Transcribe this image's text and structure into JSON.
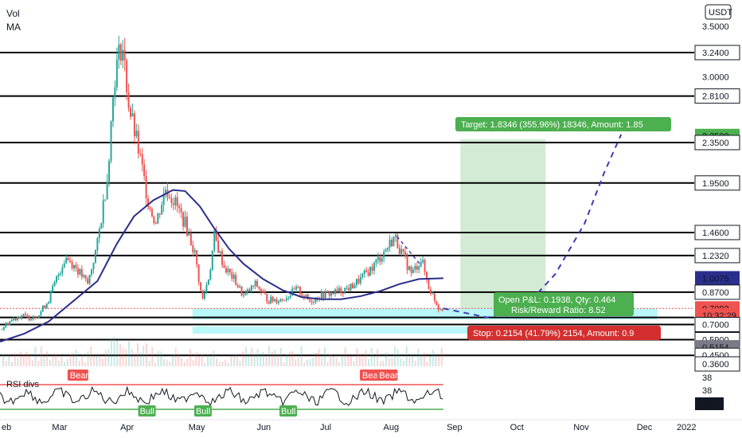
{
  "header": {
    "vol_label": "Vol",
    "ma_label": "MA",
    "currency_button": "USDT"
  },
  "colors": {
    "up": "#26a69a",
    "down": "#ef5350",
    "ma": "#2a2e8c",
    "target_zone": "#c8e6c9",
    "support_zone": "#80f0f4",
    "target_tag": "#4caf50",
    "stop_tag": "#d32f2f",
    "rsi_upper": "#ef5350",
    "rsi_lower": "#4caf50"
  },
  "chart_data": {
    "type": "line",
    "title": "",
    "price_axis": {
      "min": 0.36,
      "max": 3.5,
      "ticks": [
        "3.5000",
        "3.0000"
      ],
      "badges": [
        {
          "label": "3.2400",
          "value": 3.24,
          "bg": "#ffffff",
          "fg": "#131722"
        },
        {
          "label": "2.8100",
          "value": 2.81,
          "bg": "#ffffff",
          "fg": "#131722"
        },
        {
          "label": "2.3500",
          "value": 2.415,
          "bg": "#4caf50",
          "fg": "#ffffff"
        },
        {
          "label": "2.3500",
          "value": 2.35,
          "bg": "#ffffff",
          "fg": "#131722"
        },
        {
          "label": "1.9500",
          "value": 1.95,
          "bg": "#ffffff",
          "fg": "#131722"
        },
        {
          "label": "1.4600",
          "value": 1.46,
          "bg": "#ffffff",
          "fg": "#131722"
        },
        {
          "label": "1.2320",
          "value": 1.232,
          "bg": "#ffffff",
          "fg": "#131722"
        },
        {
          "label": "1.0075",
          "value": 1.0075,
          "bg": "#2a2e8c",
          "fg": "#ffffff"
        },
        {
          "label": "0.8700",
          "value": 0.87,
          "bg": "#ffffff",
          "fg": "#131722"
        },
        {
          "label": "0.7092",
          "value": 0.7092,
          "bg": "#ef5350",
          "fg": "#ffffff"
        },
        {
          "label": "10:32:29",
          "value": 0.6392,
          "bg": "#ef5350",
          "fg": "#ffffff"
        },
        {
          "label": "0.7000",
          "value": 0.55,
          "bg": "#ffffff",
          "fg": "#131722"
        },
        {
          "label": "0.5900",
          "value": 0.4,
          "bg": "#ffffff",
          "fg": "#131722"
        },
        {
          "label": "0.5154",
          "value": 0.325,
          "bg": "#787b86",
          "fg": "#ffffff"
        },
        {
          "label": "0.4500",
          "value": 0.245,
          "bg": "#ffffff",
          "fg": "#131722"
        },
        {
          "label": "0.3600",
          "value": 0.16,
          "bg": "#ffffff",
          "fg": "#131722"
        }
      ]
    },
    "horizontal_levels": [
      3.24,
      2.81,
      2.35,
      1.95,
      1.46,
      1.232,
      0.87,
      0.7,
      0.59,
      0.45,
      0.36
    ],
    "x_axis_labels": [
      "eb",
      "Mar",
      "Apr",
      "May",
      "Jun",
      "Jul",
      "Aug",
      "Sep",
      "Oct",
      "Nov",
      "Dec",
      "2022"
    ],
    "price_series": [
      {
        "t": 0,
        "p": 0.5
      },
      {
        "t": 4,
        "p": 0.58
      },
      {
        "t": 8,
        "p": 0.64
      },
      {
        "t": 12,
        "p": 0.62
      },
      {
        "t": 16,
        "p": 0.65
      },
      {
        "t": 20,
        "p": 0.8
      },
      {
        "t": 24,
        "p": 1.05
      },
      {
        "t": 27,
        "p": 1.22
      },
      {
        "t": 31,
        "p": 1.12
      },
      {
        "t": 36,
        "p": 0.95
      },
      {
        "t": 40,
        "p": 1.35
      },
      {
        "t": 44,
        "p": 2.0
      },
      {
        "t": 47,
        "p": 3.0
      },
      {
        "t": 50,
        "p": 3.35
      },
      {
        "t": 53,
        "p": 2.7
      },
      {
        "t": 57,
        "p": 2.25
      },
      {
        "t": 61,
        "p": 1.75
      },
      {
        "t": 64,
        "p": 1.55
      },
      {
        "t": 68,
        "p": 1.9
      },
      {
        "t": 72,
        "p": 1.75
      },
      {
        "t": 76,
        "p": 1.55
      },
      {
        "t": 80,
        "p": 1.25
      },
      {
        "t": 83,
        "p": 0.78
      },
      {
        "t": 86,
        "p": 1.05
      },
      {
        "t": 88,
        "p": 1.42
      },
      {
        "t": 92,
        "p": 1.12
      },
      {
        "t": 96,
        "p": 1.0
      },
      {
        "t": 100,
        "p": 0.83
      },
      {
        "t": 105,
        "p": 0.95
      },
      {
        "t": 110,
        "p": 0.79
      },
      {
        "t": 116,
        "p": 0.8
      },
      {
        "t": 122,
        "p": 0.9
      },
      {
        "t": 127,
        "p": 0.78
      },
      {
        "t": 132,
        "p": 0.84
      },
      {
        "t": 138,
        "p": 0.87
      },
      {
        "t": 144,
        "p": 0.92
      },
      {
        "t": 148,
        "p": 1.0
      },
      {
        "t": 153,
        "p": 1.12
      },
      {
        "t": 158,
        "p": 1.28
      },
      {
        "t": 162,
        "p": 1.42
      },
      {
        "t": 165,
        "p": 1.25
      },
      {
        "t": 169,
        "p": 1.05
      },
      {
        "t": 173,
        "p": 1.2
      },
      {
        "t": 176,
        "p": 0.92
      },
      {
        "t": 180,
        "p": 0.72
      },
      {
        "t": 182,
        "p": 0.7092
      }
    ],
    "ma_series": [
      {
        "t": 0,
        "p": 0.38
      },
      {
        "t": 10,
        "p": 0.46
      },
      {
        "t": 20,
        "p": 0.58
      },
      {
        "t": 30,
        "p": 0.78
      },
      {
        "t": 40,
        "p": 0.98
      },
      {
        "t": 48,
        "p": 1.35
      },
      {
        "t": 55,
        "p": 1.62
      },
      {
        "t": 63,
        "p": 1.78
      },
      {
        "t": 71,
        "p": 1.88
      },
      {
        "t": 76,
        "p": 1.87
      },
      {
        "t": 82,
        "p": 1.72
      },
      {
        "t": 88,
        "p": 1.5
      },
      {
        "t": 94,
        "p": 1.3
      },
      {
        "t": 100,
        "p": 1.15
      },
      {
        "t": 108,
        "p": 1.0
      },
      {
        "t": 116,
        "p": 0.89
      },
      {
        "t": 124,
        "p": 0.82
      },
      {
        "t": 132,
        "p": 0.8
      },
      {
        "t": 140,
        "p": 0.8
      },
      {
        "t": 148,
        "p": 0.83
      },
      {
        "t": 156,
        "p": 0.88
      },
      {
        "t": 164,
        "p": 0.95
      },
      {
        "t": 172,
        "p": 1.0
      },
      {
        "t": 182,
        "p": 1.0075
      }
    ],
    "projection": [
      {
        "t": 182,
        "p": 0.7092
      },
      {
        "t": 200,
        "p": 0.62
      },
      {
        "t": 215,
        "p": 0.71
      },
      {
        "t": 228,
        "p": 1.05
      },
      {
        "t": 240,
        "p": 1.55
      },
      {
        "t": 248,
        "p": 2.05
      },
      {
        "t": 255,
        "p": 2.43
      }
    ],
    "target_zone": {
      "t_start": 189,
      "t_end": 224,
      "p_low": 0.7092,
      "p_high": 2.415
    },
    "support_zone": {
      "t_start": 79,
      "t_end": 270,
      "p_low": 0.5154,
      "p_high": 0.7092
    },
    "rsi": {
      "upper_band": 70,
      "lower_band": 30,
      "labels": {
        "title": "RSI divs",
        "bear": "Bear",
        "bull": "Bull"
      },
      "axis_ticks": [
        "38",
        "38",
        "36"
      ],
      "bear_tags": [
        {
          "t": 31
        },
        {
          "t": 151
        },
        {
          "t": 158
        }
      ],
      "bull_tags": [
        {
          "t": 60
        },
        {
          "t": 83
        },
        {
          "t": 118
        }
      ]
    },
    "annotations": {
      "target_text": "Target: 1.8346 (355.96%) 18346, Amount: 1.85",
      "pnl_text": "Open P&L: 0.1938, Qty: 0.464",
      "rr_text": "Risk/Reward Ratio: 8.52",
      "stop_text": "Stop: 0.2154 (41.79%) 2154, Amount: 0.9"
    }
  }
}
